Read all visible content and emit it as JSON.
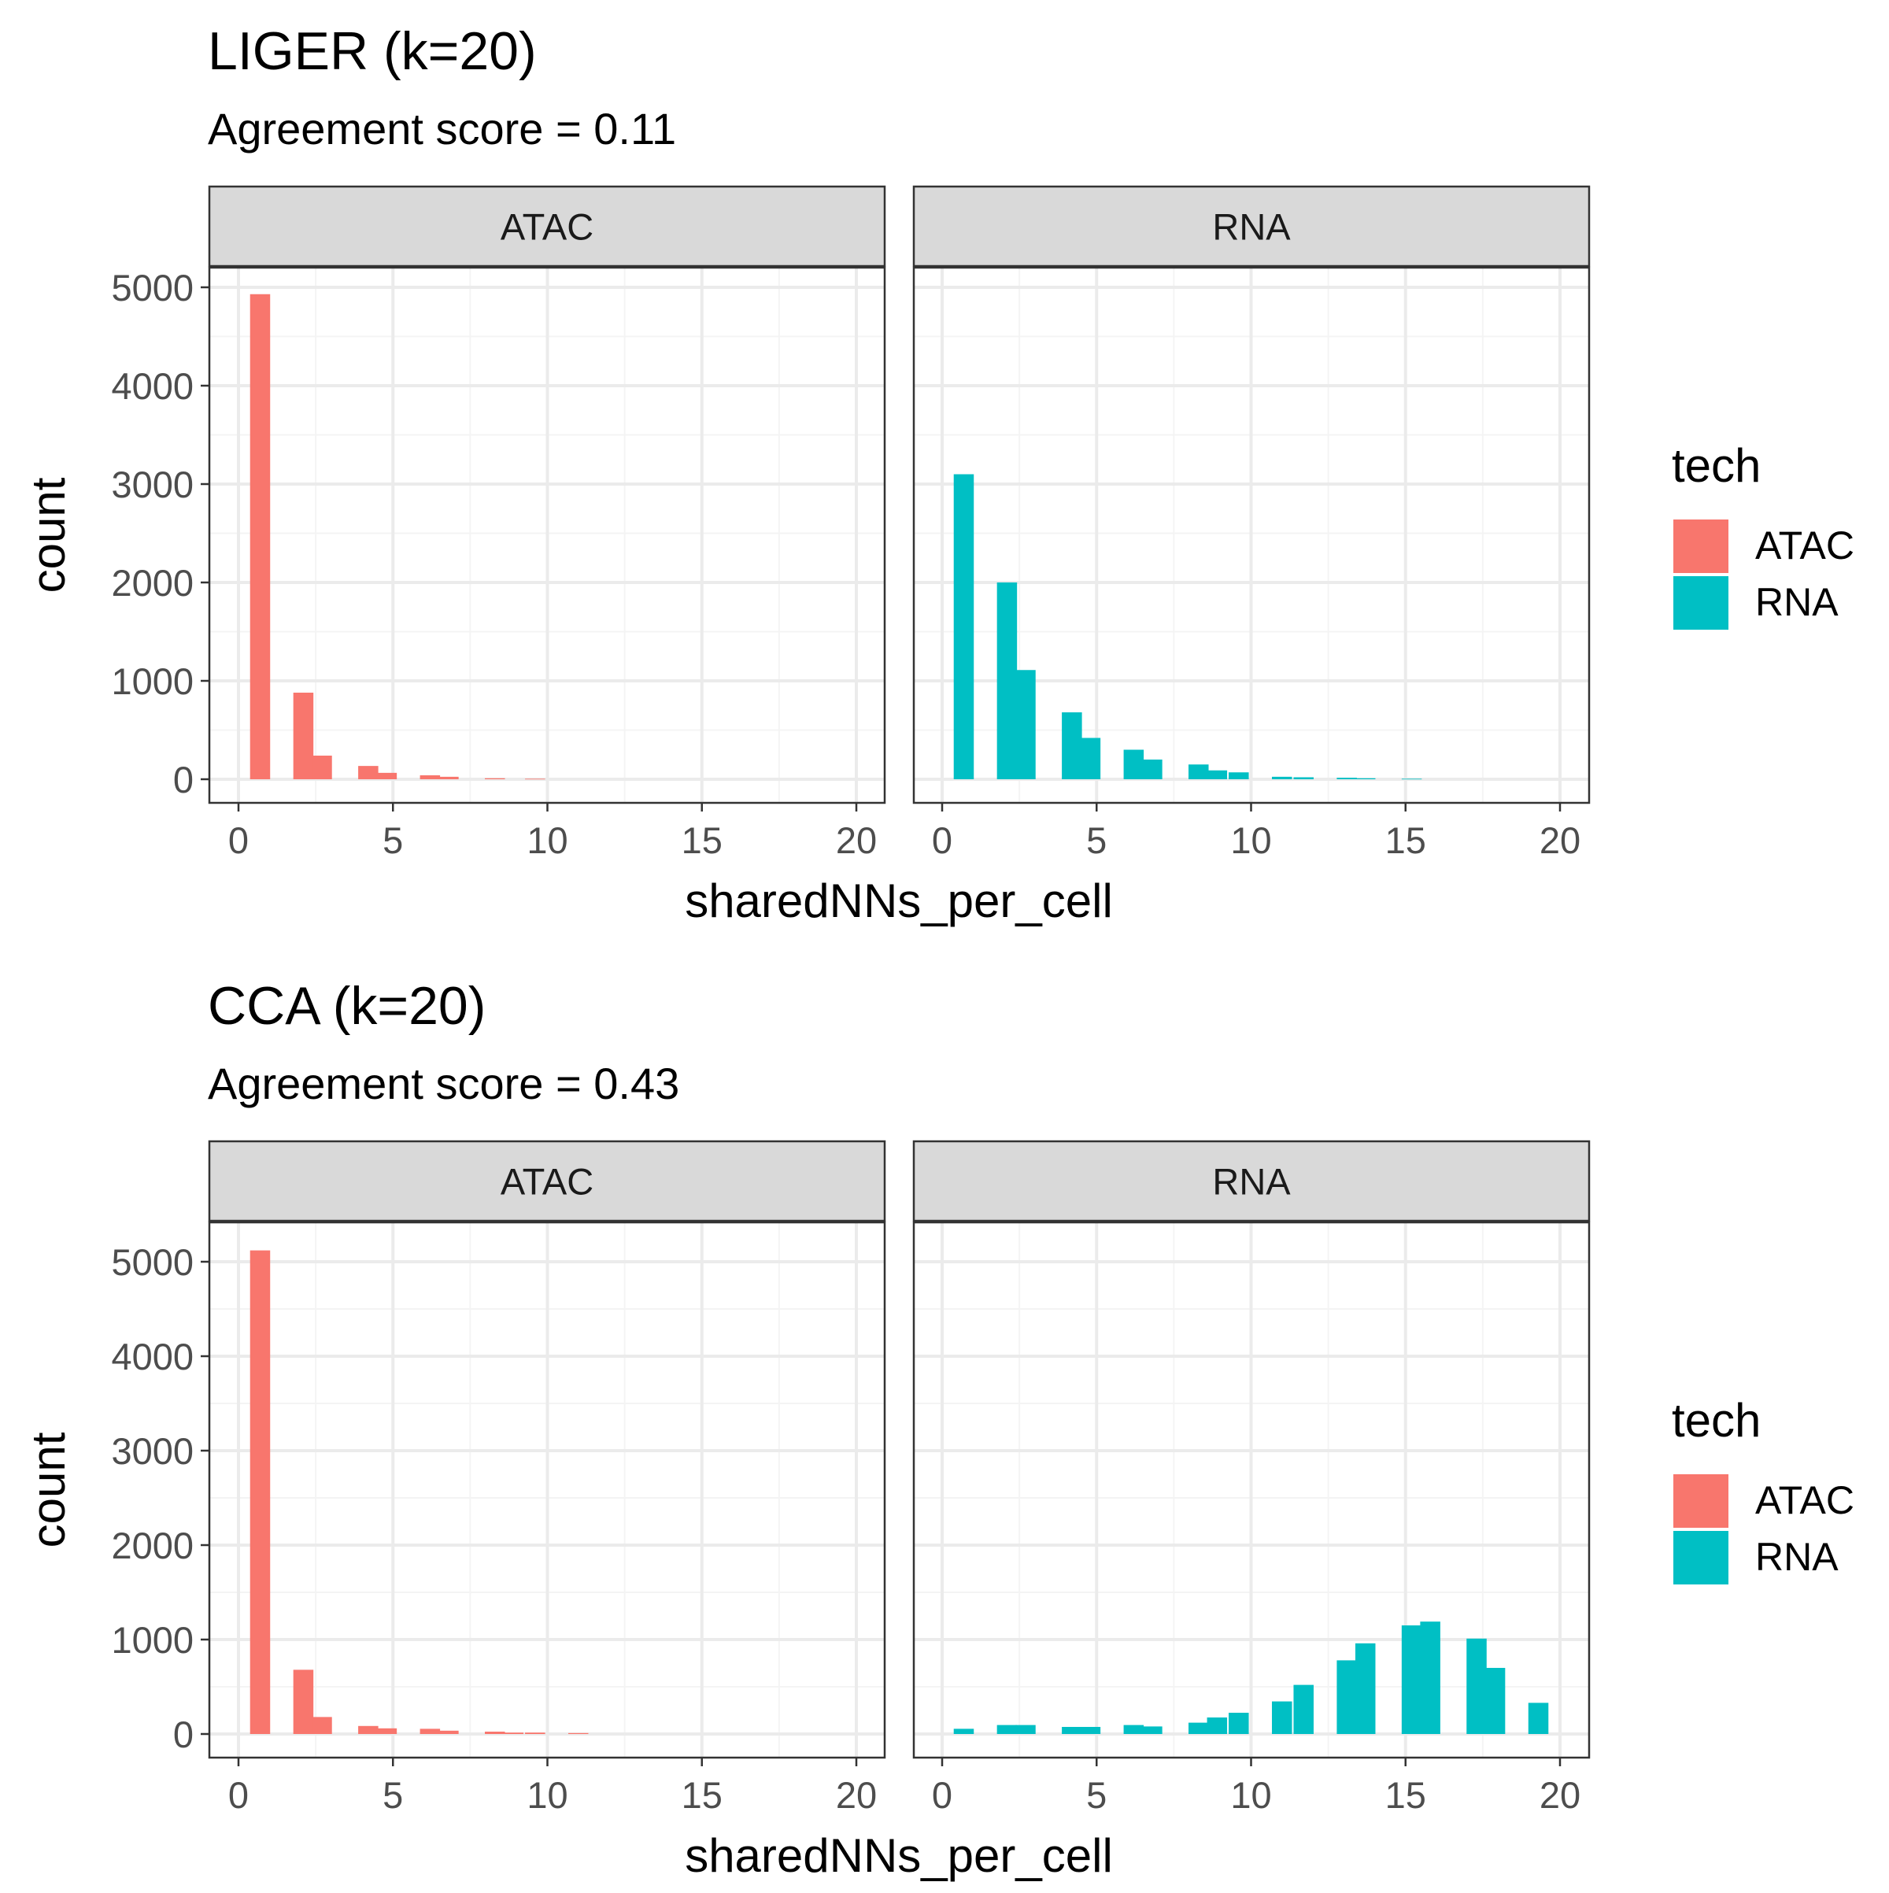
{
  "legend": {
    "title": "tech",
    "entries": [
      {
        "label": "ATAC",
        "color": "#F8766D"
      },
      {
        "label": "RNA",
        "color": "#00BFC4"
      }
    ]
  },
  "chart_data": [
    {
      "type": "bar",
      "title": "LIGER (k=20)",
      "subtitle": "Agreement score = 0.11",
      "xlabel": "sharedNNs_per_cell",
      "ylabel": "count",
      "xlim": [
        -0.9,
        20.9
      ],
      "ylim": [
        -250,
        5200
      ],
      "xticks": [
        0,
        5,
        10,
        15,
        20
      ],
      "yticks": [
        0,
        1000,
        2000,
        3000,
        4000,
        5000
      ],
      "grid": true,
      "legend_position": "right",
      "facets": [
        {
          "label": "ATAC",
          "color": "#F8766D",
          "x": [
            0.7,
            2.1,
            2.7,
            4.2,
            4.8,
            6.2,
            6.8,
            8.3,
            9.6
          ],
          "values": [
            4930,
            880,
            240,
            135,
            65,
            40,
            25,
            10,
            5
          ]
        },
        {
          "label": "RNA",
          "color": "#00BFC4",
          "x": [
            0.7,
            2.1,
            2.7,
            4.2,
            4.8,
            6.2,
            6.8,
            8.3,
            8.9,
            9.6,
            11.0,
            11.7,
            13.1,
            13.7,
            15.2
          ],
          "values": [
            3100,
            2000,
            1110,
            680,
            420,
            300,
            200,
            150,
            90,
            70,
            25,
            20,
            15,
            10,
            5
          ]
        }
      ]
    },
    {
      "type": "bar",
      "title": "CCA (k=20)",
      "subtitle": "Agreement score = 0.43",
      "xlabel": "sharedNNs_per_cell",
      "ylabel": "count",
      "xlim": [
        -0.9,
        20.9
      ],
      "ylim": [
        -250,
        5400
      ],
      "xticks": [
        0,
        5,
        10,
        15,
        20
      ],
      "yticks": [
        0,
        1000,
        2000,
        3000,
        4000,
        5000
      ],
      "grid": true,
      "legend_position": "right",
      "facets": [
        {
          "label": "ATAC",
          "color": "#F8766D",
          "x": [
            0.7,
            2.1,
            2.7,
            4.2,
            4.8,
            6.2,
            6.8,
            8.3,
            8.9,
            9.6,
            11.0
          ],
          "values": [
            5120,
            680,
            180,
            85,
            60,
            55,
            35,
            25,
            15,
            15,
            10
          ]
        },
        {
          "label": "RNA",
          "color": "#00BFC4",
          "x": [
            0.7,
            2.1,
            2.7,
            4.2,
            4.8,
            6.2,
            6.8,
            8.3,
            8.9,
            9.6,
            11.0,
            11.7,
            13.1,
            13.7,
            15.2,
            15.8,
            17.3,
            17.9,
            19.3
          ],
          "values": [
            55,
            95,
            95,
            75,
            75,
            95,
            80,
            120,
            175,
            225,
            345,
            520,
            780,
            960,
            1150,
            1190,
            1010,
            700,
            330
          ]
        }
      ]
    }
  ]
}
